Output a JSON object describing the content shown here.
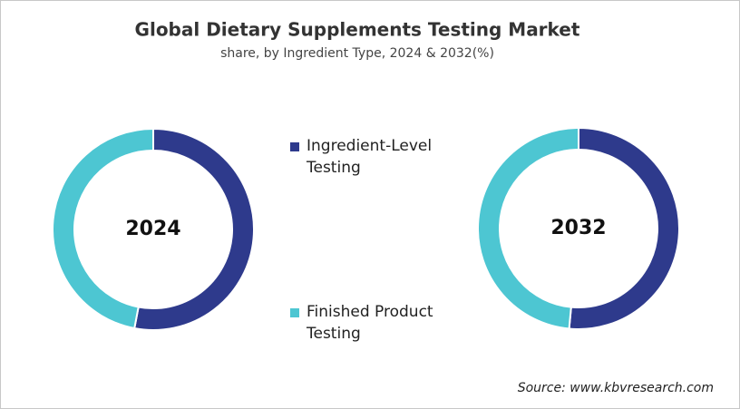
{
  "chart_data": {
    "type": "donut",
    "title": "Global Dietary Supplements Testing Market",
    "subtitle": "share, by Ingredient Type, 2024 & 2032(%)",
    "categories": [
      "Ingredient-Level Testing",
      "Finished Product Testing"
    ],
    "colors": [
      "#2e3a8c",
      "#4dc6d2"
    ],
    "series": [
      {
        "name": "2024",
        "values": [
          53,
          47
        ]
      },
      {
        "name": "2032",
        "values": [
          51.5,
          48.5
        ]
      }
    ],
    "source": "Source: www.kbvresearch.com"
  }
}
